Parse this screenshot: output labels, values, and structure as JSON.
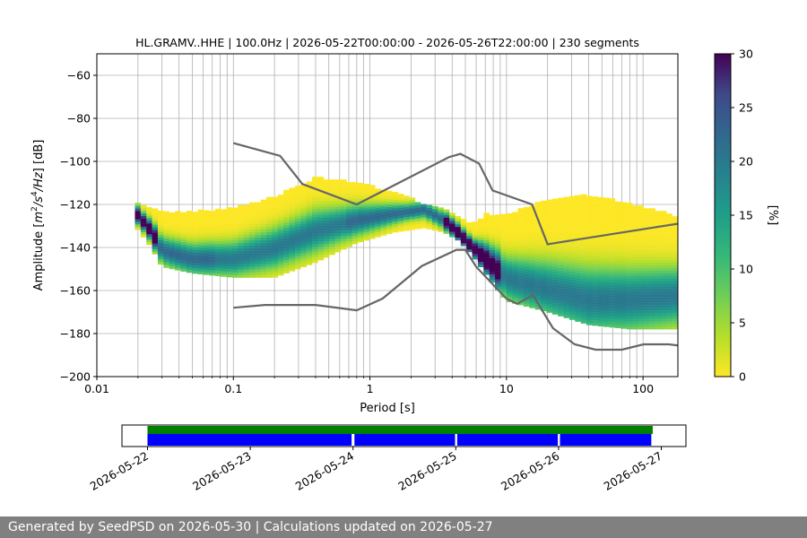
{
  "chart_data": {
    "type": "heatmap",
    "title": "HL.GRAMV..HHE | 100.0Hz | 2026-05-22T00:00:00 - 2026-05-26T22:00:00 | 230 segments",
    "xlabel": "Period [s]",
    "ylabel_parts": [
      "Amplitude [",
      "m",
      "2",
      "/",
      "s",
      "4",
      "/",
      "Hz",
      "] [dB]"
    ],
    "x_scale": "log",
    "xlim": [
      0.01,
      180
    ],
    "ylim": [
      -200,
      -50
    ],
    "x_ticks": [
      {
        "value": 0.01,
        "label": "0.01"
      },
      {
        "value": 0.1,
        "label": "0.1"
      },
      {
        "value": 1,
        "label": "1"
      },
      {
        "value": 10,
        "label": "10"
      },
      {
        "value": 100,
        "label": "100"
      }
    ],
    "y_ticks": [
      {
        "value": -60,
        "label": "−60"
      },
      {
        "value": -80,
        "label": "−80"
      },
      {
        "value": -100,
        "label": "−100"
      },
      {
        "value": -120,
        "label": "−120"
      },
      {
        "value": -140,
        "label": "−140"
      },
      {
        "value": -160,
        "label": "−160"
      },
      {
        "value": -180,
        "label": "−180"
      },
      {
        "value": -200,
        "label": "−200"
      }
    ],
    "grid": true,
    "colormap": "viridis_r",
    "colorbar": {
      "label": "[%]",
      "range": [
        0,
        30
      ],
      "ticks": [
        {
          "value": 0,
          "label": "0"
        },
        {
          "value": 5,
          "label": "5"
        },
        {
          "value": 10,
          "label": "10"
        },
        {
          "value": 15,
          "label": "15"
        },
        {
          "value": 20,
          "label": "20"
        },
        {
          "value": 25,
          "label": "25"
        },
        {
          "value": 30,
          "label": "30"
        }
      ]
    },
    "psd_band": {
      "period": [
        0.019,
        0.025,
        0.03,
        0.05,
        0.1,
        0.2,
        0.4,
        0.8,
        1.5,
        2.5,
        3.5,
        4.5,
        5.5,
        7,
        10,
        20,
        40,
        80,
        180
      ],
      "mode_db": [
        -124,
        -133,
        -142,
        -146,
        -146,
        -141,
        -133,
        -128,
        -125,
        -123,
        -128,
        -134,
        -140,
        -146,
        -155,
        -160,
        -165,
        -165,
        -163
      ],
      "upper_db": [
        -119,
        -122,
        -124,
        -124,
        -122,
        -117,
        -108,
        -110,
        -115,
        -120,
        -122,
        -126,
        -130,
        -125,
        -125,
        -118,
        -116,
        -120,
        -126
      ],
      "lower_db": [
        -130,
        -140,
        -149,
        -152,
        -154,
        -154,
        -147,
        -138,
        -133,
        -131,
        -133,
        -137,
        -143,
        -152,
        -165,
        -170,
        -176,
        -178,
        -178
      ]
    },
    "noise_models": [
      {
        "period": [
          0.1,
          0.22,
          0.32,
          0.8,
          3.8,
          4.6,
          6.3,
          7.9,
          15.4,
          20,
          354.8
        ],
        "db": [
          -91.5,
          -97.4,
          -110.5,
          -120,
          -98,
          -96.5,
          -101,
          -113.5,
          -120,
          -138.5,
          -126
        ]
      },
      {
        "period": [
          0.1,
          0.17,
          0.4,
          0.8,
          1.24,
          2.4,
          4.3,
          5,
          6,
          10,
          12,
          15.6,
          21.9,
          31.6,
          45,
          70,
          101,
          154,
          328,
          600
        ],
        "db": [
          -168,
          -166.7,
          -166.7,
          -169.2,
          -163.7,
          -148.6,
          -141.1,
          -141.1,
          -149,
          -163.8,
          -166.2,
          -162.1,
          -177.5,
          -185,
          -187.5,
          -187.5,
          -185,
          -185,
          -187.5,
          -187.5
        ]
      }
    ],
    "timeline": {
      "start": "2026-05-22",
      "end": "2026-05-27",
      "date_labels": [
        "2026-05-22",
        "2026-05-23",
        "2026-05-24",
        "2026-05-25",
        "2026-05-26",
        "2026-05-27"
      ],
      "data_color": "#008000",
      "psd_color": "#0000ff",
      "data_segments": [
        [
          "2026-05-22T00:00",
          "2026-05-26T22:00"
        ]
      ],
      "psd_segments": [
        [
          "2026-05-22T00:00",
          "2026-05-23T23:40"
        ],
        [
          "2026-05-24T00:20",
          "2026-05-24T23:50"
        ],
        [
          "2026-05-25T00:20",
          "2026-05-25T23:50"
        ],
        [
          "2026-05-26T00:20",
          "2026-05-26T21:40"
        ]
      ]
    }
  },
  "footer": {
    "text": "Generated by SeedPSD on 2026-05-30 | Calculations updated on 2026-05-27"
  }
}
